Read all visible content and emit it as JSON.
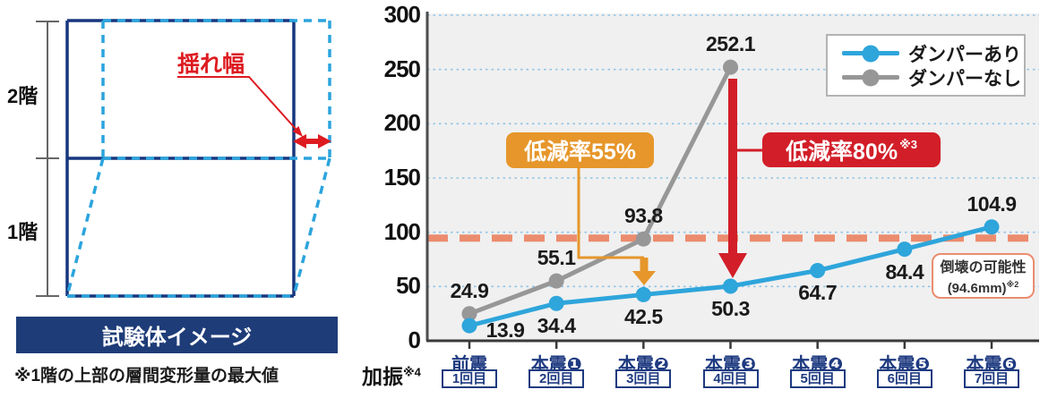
{
  "diagram": {
    "floor2_label": "2階",
    "floor1_label": "1階",
    "sway_label": "揺れ幅",
    "banner": "試験体イメージ",
    "caption": "※1階の上部の層間変形量の最大値",
    "colors": {
      "frame_navy": "#17377e",
      "deformed_cyan": "#2ba4dd",
      "accent_red": "#dd1b21",
      "banner_navy": "#1e3c78"
    }
  },
  "chart_data": {
    "type": "line",
    "categories": [
      "前震",
      "本震❶",
      "本震❷",
      "本震❸",
      "本震❹",
      "本震❺",
      "本震❻"
    ],
    "category_rounds": [
      "1回目",
      "2回目",
      "3回目",
      "4回目",
      "5回目",
      "6回目",
      "7回目"
    ],
    "xaxis_prefix": {
      "text": "加振",
      "sup": "※4"
    },
    "ylim": [
      0,
      300
    ],
    "yticks": [
      0,
      50,
      100,
      150,
      200,
      250,
      300
    ],
    "grid": "horizontal-dotted",
    "grid_color": "#8fc3e6",
    "axis_label_color": "#1e3a80",
    "plot_background": "#f0f0f0",
    "legend_position": "top-right",
    "series": [
      {
        "name": "ダンパーあり",
        "color": "#2ea5db",
        "values": [
          13.9,
          34.4,
          42.5,
          50.3,
          64.7,
          84.4,
          104.9
        ],
        "label_positions": [
          "right",
          "below",
          "below",
          "below",
          "below",
          "below",
          "above"
        ]
      },
      {
        "name": "ダンパーなし",
        "color": "#979797",
        "values": [
          24.9,
          55.1,
          93.8,
          252.1
        ],
        "label_positions": [
          "above",
          "above",
          "above",
          "above"
        ]
      }
    ],
    "threshold": {
      "value": 94.6,
      "color": "#eb8c6e",
      "style": "thick-dashed"
    },
    "annotations": {
      "reduction55": {
        "text": "低減率55%",
        "color": "#e6962a",
        "target": "本震❷"
      },
      "reduction80": {
        "text": "低減率80%",
        "sup": "※3",
        "color": "#d21e28",
        "target": "本震❸"
      },
      "collapse_note": {
        "line1": "倒壊の可能性",
        "line2": "(94.6mm)",
        "sup": "※2",
        "border_color": "#eb8c6e"
      }
    }
  }
}
